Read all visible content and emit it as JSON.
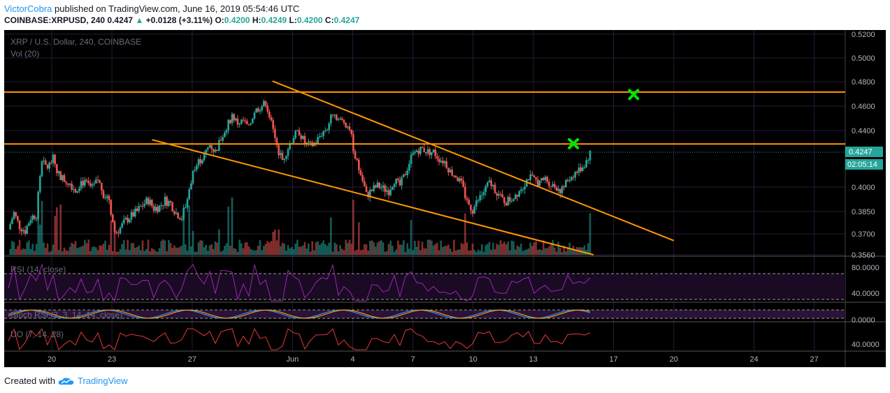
{
  "header": {
    "author": "VictorCobra",
    "published": "published on TradingView.com, June 16, 2019 05:54:46 UTC",
    "symbol": "COINBASE:XRPUSD, 240",
    "last": "0.4247",
    "change_arrow": "▲",
    "change": "+0.0128 (+3.11%)",
    "ohlc": {
      "o_label": "O:",
      "o": "0.4200",
      "h_label": "H:",
      "h": "0.4249",
      "l_label": "L:",
      "l": "0.4200",
      "c_label": "C:",
      "c": "0.4247"
    }
  },
  "chart_data": {
    "type": "candlestick",
    "title": "XRP / U.S. Dollar, 240, COINBASE",
    "volume_label": "Vol (20)",
    "price_ticks": [
      0.52,
      0.5,
      0.48,
      0.46,
      0.44,
      0.4,
      0.385,
      0.37,
      0.356
    ],
    "price_tick_labels": [
      "0.5200",
      "0.5000",
      "0.4800",
      "0.4600",
      "0.4400",
      "0.4000",
      "0.3850",
      "0.3700",
      "0.3560"
    ],
    "ylim": [
      0.356,
      0.522
    ],
    "x_tick_labels": [
      "20",
      "23",
      "27",
      "Jun",
      "4",
      "7",
      "10",
      "13",
      "17",
      "20",
      "24",
      "27"
    ],
    "last_price_label": "0.4247",
    "countdown_label": "02:05:14",
    "resistance_levels": [
      0.4715,
      0.4305
    ],
    "target_markers": [
      {
        "date": "Jun 18",
        "price": 0.4695
      },
      {
        "date": "Jun 15",
        "price": 0.4307
      }
    ],
    "descending_trendlines": [
      {
        "from": {
          "date": "May 31",
          "price": 0.4805
        },
        "to": {
          "date": "Jun 20",
          "price": 0.3655
        }
      },
      {
        "from": {
          "date": "May 25",
          "price": 0.4335
        },
        "to": {
          "date": "Jun 16",
          "price": 0.3555
        }
      }
    ],
    "close_path": [
      [
        0,
        0.373
      ],
      [
        8,
        0.384
      ],
      [
        16,
        0.375
      ],
      [
        24,
        0.372
      ],
      [
        32,
        0.381
      ],
      [
        40,
        0.383
      ],
      [
        48,
        0.417
      ],
      [
        56,
        0.414
      ],
      [
        64,
        0.42
      ],
      [
        72,
        0.409
      ],
      [
        80,
        0.405
      ],
      [
        88,
        0.403
      ],
      [
        96,
        0.398
      ],
      [
        104,
        0.404
      ],
      [
        112,
        0.402
      ],
      [
        120,
        0.399
      ],
      [
        128,
        0.405
      ],
      [
        136,
        0.396
      ],
      [
        144,
        0.393
      ],
      [
        152,
        0.37
      ],
      [
        160,
        0.374
      ],
      [
        168,
        0.379
      ],
      [
        176,
        0.382
      ],
      [
        184,
        0.385
      ],
      [
        192,
        0.389
      ],
      [
        200,
        0.392
      ],
      [
        208,
        0.387
      ],
      [
        216,
        0.388
      ],
      [
        224,
        0.392
      ],
      [
        232,
        0.39
      ],
      [
        240,
        0.384
      ],
      [
        248,
        0.381
      ],
      [
        256,
        0.393
      ],
      [
        264,
        0.41
      ],
      [
        272,
        0.418
      ],
      [
        280,
        0.422
      ],
      [
        288,
        0.43
      ],
      [
        296,
        0.425
      ],
      [
        304,
        0.434
      ],
      [
        312,
        0.443
      ],
      [
        320,
        0.452
      ],
      [
        328,
        0.446
      ],
      [
        336,
        0.448
      ],
      [
        344,
        0.442
      ],
      [
        352,
        0.456
      ],
      [
        360,
        0.459
      ],
      [
        368,
        0.463
      ],
      [
        376,
        0.446
      ],
      [
        384,
        0.428
      ],
      [
        392,
        0.419
      ],
      [
        400,
        0.428
      ],
      [
        408,
        0.436
      ],
      [
        416,
        0.439
      ],
      [
        424,
        0.431
      ],
      [
        432,
        0.429
      ],
      [
        440,
        0.432
      ],
      [
        448,
        0.438
      ],
      [
        456,
        0.442
      ],
      [
        464,
        0.455
      ],
      [
        472,
        0.449
      ],
      [
        480,
        0.447
      ],
      [
        488,
        0.442
      ],
      [
        496,
        0.421
      ],
      [
        504,
        0.409
      ],
      [
        512,
        0.395
      ],
      [
        520,
        0.398
      ],
      [
        528,
        0.401
      ],
      [
        536,
        0.399
      ],
      [
        544,
        0.398
      ],
      [
        552,
        0.405
      ],
      [
        560,
        0.401
      ],
      [
        568,
        0.41
      ],
      [
        576,
        0.421
      ],
      [
        584,
        0.426
      ],
      [
        592,
        0.427
      ],
      [
        600,
        0.425
      ],
      [
        608,
        0.425
      ],
      [
        616,
        0.42
      ],
      [
        624,
        0.418
      ],
      [
        632,
        0.411
      ],
      [
        640,
        0.408
      ],
      [
        648,
        0.402
      ],
      [
        656,
        0.391
      ],
      [
        664,
        0.386
      ],
      [
        672,
        0.392
      ],
      [
        680,
        0.397
      ],
      [
        688,
        0.403
      ],
      [
        696,
        0.399
      ],
      [
        704,
        0.393
      ],
      [
        712,
        0.391
      ],
      [
        720,
        0.393
      ],
      [
        728,
        0.397
      ],
      [
        736,
        0.401
      ],
      [
        744,
        0.407
      ],
      [
        752,
        0.405
      ],
      [
        760,
        0.403
      ],
      [
        768,
        0.406
      ],
      [
        776,
        0.402
      ],
      [
        784,
        0.4
      ],
      [
        792,
        0.398
      ],
      [
        800,
        0.405
      ],
      [
        808,
        0.409
      ],
      [
        816,
        0.412
      ],
      [
        824,
        0.416
      ],
      [
        832,
        0.424
      ]
    ],
    "rsi": {
      "label": "RSI (14, close)",
      "ticks": [
        80,
        40
      ],
      "tick_labels": [
        "80.0000",
        "40.0000"
      ]
    },
    "stoch_rsi": {
      "label": "Stoch RSI (3, 3, 14, 14, close)",
      "ticks": [
        0
      ],
      "tick_labels": [
        "0.0000"
      ]
    },
    "uo": {
      "label": "UO (7, 14, 28)",
      "ticks": [
        40
      ],
      "tick_labels": [
        "40.0000"
      ]
    },
    "colors": {
      "bull": "#26a69a",
      "bear": "#ef5350",
      "trend": "#ff9800",
      "marker": "#00e600",
      "rsi": "#9c27b0",
      "uo": "#e53935",
      "bg": "#000000",
      "grid": "#2a1a3a",
      "price_badge": "#26a69a"
    }
  },
  "footer": {
    "created_with": "Created with",
    "brand": "TradingView"
  },
  "icons": {
    "brand_logo": "tradingview-cloud-icon"
  }
}
